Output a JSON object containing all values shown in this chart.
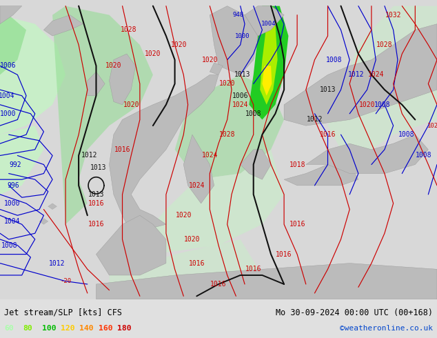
{
  "title_left": "Jet stream/SLP [kts] CFS",
  "title_right": "Mo 30-09-2024 00:00 UTC (00+168)",
  "watermark": "©weatheronline.co.uk",
  "legend_values": [
    "60",
    "80",
    "100",
    "120",
    "140",
    "160",
    "180"
  ],
  "legend_colors": [
    "#aaffaa",
    "#80ee00",
    "#00bb00",
    "#ffcc00",
    "#ff8800",
    "#ff3300",
    "#cc0000"
  ],
  "figsize": [
    6.34,
    4.9
  ],
  "dpi": 100,
  "bg_color": "#d8d8d8",
  "bottom_bar_color": "#e0e0e0",
  "blue": "#0000cc",
  "red": "#cc0000",
  "black": "#111111",
  "land_color": "#bbbbbb",
  "ocean_color": "#d4d4d4",
  "green_light": "#c8eec8",
  "green_mid": "#90dd90",
  "green_bright": "#22cc22",
  "green_yellow": "#aaee00",
  "yellow": "#ffee00"
}
